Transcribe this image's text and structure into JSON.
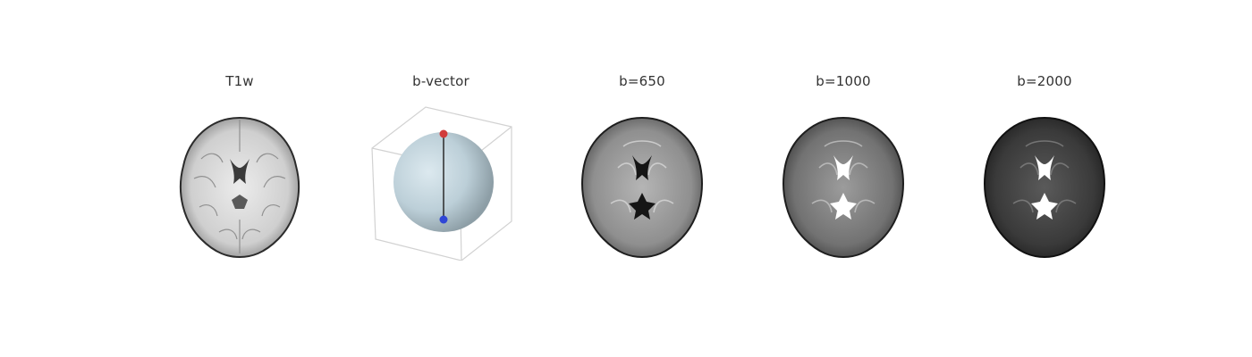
{
  "panels": [
    {
      "title": "T1w",
      "tone": "#d6d6d6",
      "ventricle": "#2a2a2a"
    },
    {
      "title": "b-vector",
      "sphere_color": "#b9cdd6",
      "point_top_color": "#d13b3b",
      "point_bottom_color": "#2f46d6"
    },
    {
      "title": "b=650",
      "tone": "#9a9a9a",
      "ventricle": "#151515"
    },
    {
      "title": "b=1000",
      "tone": "#7d7d7d",
      "ventricle": "#ffffff"
    },
    {
      "title": "b=2000",
      "tone": "#3e3e3e",
      "ventricle": "#ffffff"
    }
  ]
}
